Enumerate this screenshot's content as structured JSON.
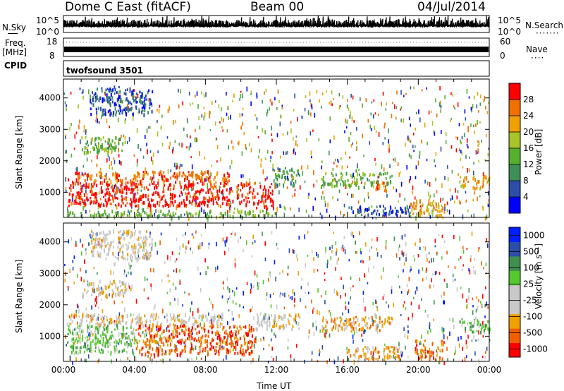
{
  "header": {
    "radar": "Dome C East (fitACF)",
    "beam": "Beam 00",
    "date": "04/Jul/2014"
  },
  "top_panels": {
    "nsky": {
      "label": "N.Sky",
      "ticks": [
        "10^5",
        "10^0"
      ],
      "right_label": "N.Search",
      "right_ticks": [
        "10^5",
        "10^0"
      ]
    },
    "freq": {
      "label_line1": "Freq.",
      "label_line2": "[MHz]",
      "ticks": [
        "18",
        "8"
      ],
      "right_label": "Nave",
      "right_ticks": [
        "60",
        "0"
      ]
    },
    "cpid": {
      "label": "CPID",
      "value": "twofsound 3501"
    }
  },
  "colors": {
    "power_scale": [
      "#0000ff",
      "#2a4fa8",
      "#3f8f5a",
      "#55b030",
      "#a7c42a",
      "#f0a000",
      "#f07000",
      "#ff0000"
    ],
    "velocity_scale": [
      "#ff0000",
      "#f06000",
      "#f0a000",
      "#c8c8c8",
      "#c8c8c8",
      "#55c830",
      "#3f9050",
      "#2a4fa8",
      "#0020ff"
    ]
  },
  "chart_data": [
    {
      "type": "heatmap",
      "name": "power-panel",
      "ylabel": "Slant Range [km]",
      "yticks": [
        1000,
        2000,
        3000,
        4000
      ],
      "ylim": [
        200,
        4600
      ],
      "xlim": [
        0,
        24
      ],
      "xticks": [
        "00:00",
        "04:00",
        "08:00",
        "12:00",
        "16:00",
        "20:00",
        "00:00"
      ],
      "colorbar": {
        "label": "Power [dB]",
        "ticks": [
          "28",
          "24",
          "20",
          "16",
          "12",
          "8",
          "4"
        ],
        "range": [
          0,
          32
        ]
      },
      "patches": [
        {
          "x": [
            0.2,
            10.8
          ],
          "y": [
            600,
            1350
          ],
          "level": 7
        },
        {
          "x": [
            0.2,
            9.5
          ],
          "y": [
            1350,
            1700
          ],
          "level": 6
        },
        {
          "x": [
            10.8,
            11.8
          ],
          "y": [
            500,
            1300
          ],
          "level": 7
        },
        {
          "x": [
            11.8,
            13.3
          ],
          "y": [
            1250,
            1800
          ],
          "level": 2
        },
        {
          "x": [
            14.5,
            18.5
          ],
          "y": [
            1200,
            1650
          ],
          "level": 3
        },
        {
          "x": [
            17.5,
            18.2
          ],
          "y": [
            1050,
            1400
          ],
          "level": 6
        },
        {
          "x": [
            16.0,
            19.5
          ],
          "y": [
            300,
            600
          ],
          "level": 1
        },
        {
          "x": [
            19.5,
            21.5
          ],
          "y": [
            300,
            800
          ],
          "level": 5
        },
        {
          "x": [
            22.3,
            24
          ],
          "y": [
            1150,
            1550
          ],
          "level": 5
        },
        {
          "x": [
            1.0,
            3.5
          ],
          "y": [
            2300,
            2800
          ],
          "level": 3
        },
        {
          "x": [
            1.5,
            5.0
          ],
          "y": [
            3500,
            4400
          ],
          "level": 1
        },
        {
          "x": [
            0.2,
            12.0
          ],
          "y": [
            250,
            450
          ],
          "level": 3
        }
      ]
    },
    {
      "type": "heatmap",
      "name": "velocity-panel",
      "ylabel": "Slant Range [km]",
      "yticks": [
        1000,
        2000,
        3000,
        4000
      ],
      "ylim": [
        200,
        4600
      ],
      "xlim": [
        0,
        24
      ],
      "xticks": [
        "00:00",
        "04:00",
        "08:00",
        "12:00",
        "16:00",
        "20:00",
        "00:00"
      ],
      "xlabel": "Time UT",
      "colorbar": {
        "label": "Velocity [m s⁻¹]",
        "ticks": [
          "1000",
          "500",
          "100",
          "25",
          "-25",
          "-100",
          "-500",
          "-1000"
        ],
        "range": [
          -1200,
          1200
        ]
      },
      "patches": [
        {
          "x": [
            0.2,
            4.0
          ],
          "y": [
            500,
            1400
          ],
          "level": 5
        },
        {
          "x": [
            4.0,
            10.8
          ],
          "y": [
            450,
            1400
          ],
          "level": 1
        },
        {
          "x": [
            0.2,
            9.0
          ],
          "y": [
            1400,
            1750
          ],
          "level": 3
        },
        {
          "x": [
            10.8,
            13.3
          ],
          "y": [
            1250,
            1750
          ],
          "level": 3
        },
        {
          "x": [
            14.5,
            18.5
          ],
          "y": [
            1200,
            1650
          ],
          "level": 2
        },
        {
          "x": [
            16.0,
            19.0
          ],
          "y": [
            300,
            700
          ],
          "level": 2
        },
        {
          "x": [
            19.8,
            21.5
          ],
          "y": [
            300,
            900
          ],
          "level": 1
        },
        {
          "x": [
            22.3,
            24
          ],
          "y": [
            1150,
            1550
          ],
          "level": 5
        },
        {
          "x": [
            1.0,
            3.5
          ],
          "y": [
            2300,
            2800
          ],
          "level": 3
        },
        {
          "x": [
            1.5,
            5.0
          ],
          "y": [
            3500,
            4400
          ],
          "level": 3
        }
      ]
    }
  ]
}
